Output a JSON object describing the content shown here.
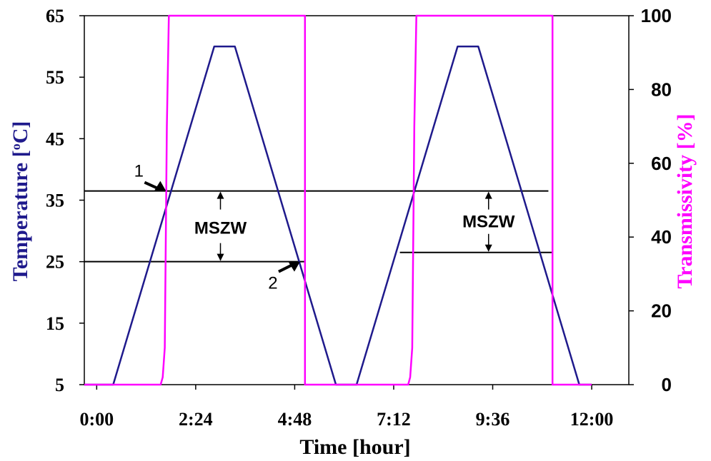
{
  "chart_data": {
    "type": "line",
    "xlabel": "Time [hour]",
    "ylabel_left": "Temperature [",
    "ylabel_left_sup": "o",
    "ylabel_left_tail": "C]",
    "ylabel_right_main": "Transmissivity",
    "ylabel_right_unit": "[%]",
    "x_ticks": [
      0,
      2.4,
      4.8,
      7.2,
      9.6,
      12.0
    ],
    "x_tick_labels": [
      "0:00",
      "2:24",
      "4:48",
      "7:12",
      "9:36",
      "12:00"
    ],
    "xlim": [
      -0.3,
      12.9
    ],
    "y_left_ticks": [
      5,
      15,
      25,
      35,
      45,
      55,
      65
    ],
    "y_left_tick_labels": [
      "5",
      "15",
      "25",
      "35",
      "45",
      "55",
      "65"
    ],
    "ylim_left": [
      5,
      65
    ],
    "y_right_ticks": [
      0,
      20,
      40,
      60,
      80,
      100
    ],
    "y_right_tick_labels": [
      "0",
      "20",
      "40",
      "60",
      "80",
      "100"
    ],
    "ylim_right": [
      0,
      100
    ],
    "grid": false,
    "series": [
      {
        "axis": "left",
        "color": "#1f1a8c",
        "x": [
          -0.3,
          0.4,
          2.85,
          3.35,
          5.8,
          6.3,
          8.75,
          9.25,
          11.7,
          12.0
        ],
        "y": [
          5,
          5,
          60,
          60,
          5,
          5,
          60,
          60,
          5,
          5
        ]
      },
      {
        "axis": "right",
        "color": "#ff00ff",
        "x": [
          -0.3,
          1.55,
          1.6,
          1.65,
          1.7,
          1.75,
          5.05,
          5.05,
          7.55,
          7.6,
          7.65,
          7.7,
          7.75,
          11.05,
          11.05,
          12.0
        ],
        "y": [
          0,
          0,
          2,
          10,
          70,
          100,
          100,
          0,
          0,
          2,
          10,
          70,
          100,
          100,
          0,
          0
        ]
      }
    ],
    "reference_lines": [
      {
        "y": 36.5,
        "x_from": -0.3,
        "x_to": 10.95
      },
      {
        "y": 25,
        "x_from": -0.3,
        "x_to": 5.05
      },
      {
        "y": 26.5,
        "x_from": 7.35,
        "x_to": 11.05
      }
    ],
    "annotations": [
      {
        "text": "MSZW",
        "x": 3.0,
        "y": 30.5
      },
      {
        "text": "MSZW",
        "x": 9.5,
        "y": 31.5
      }
    ],
    "markers": [
      {
        "text": "1",
        "x": 1.75,
        "y": 36.5
      },
      {
        "text": "2",
        "x": 5.0,
        "y": 25
      }
    ],
    "double_arrows": [
      {
        "x": 3.0,
        "y_top": 36.5,
        "y_bottom": 25
      },
      {
        "x": 9.5,
        "y_top": 36.5,
        "y_bottom": 26.5
      }
    ]
  }
}
